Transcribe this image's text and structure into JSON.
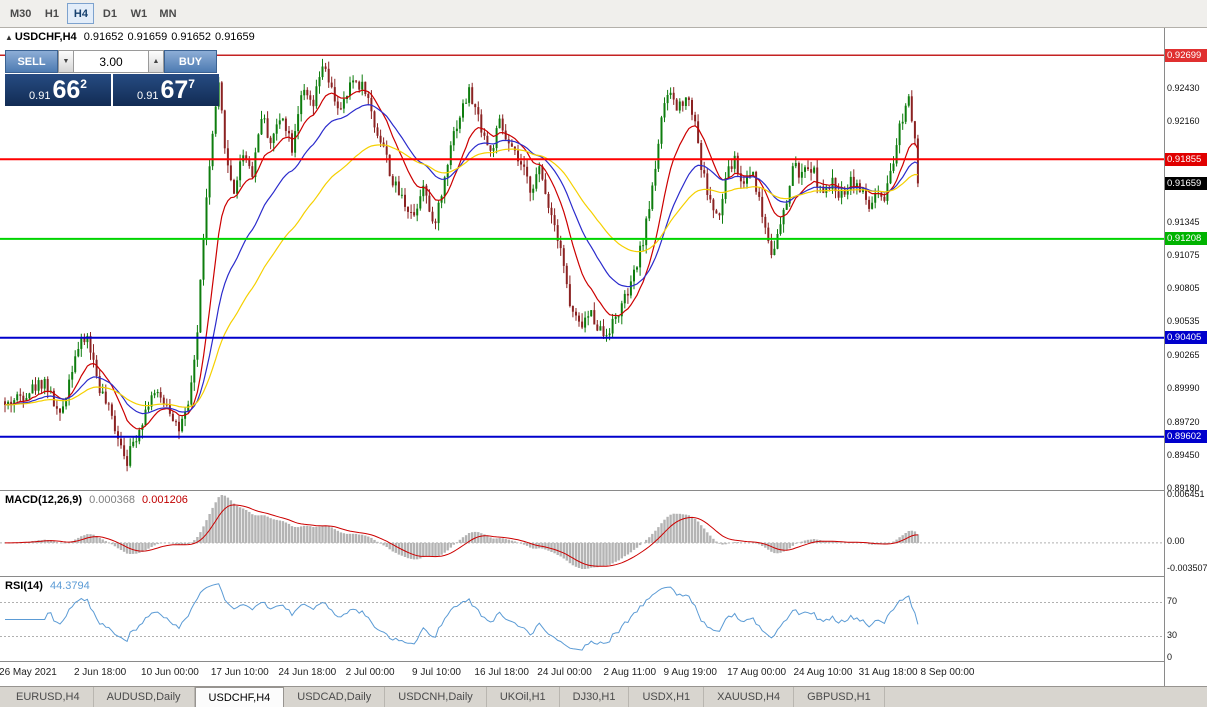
{
  "toolbar": {
    "timeframes": [
      {
        "label": "M30",
        "active": false
      },
      {
        "label": "H1",
        "active": false
      },
      {
        "label": "H4",
        "active": true
      },
      {
        "label": "D1",
        "active": false
      },
      {
        "label": "W1",
        "active": false
      },
      {
        "label": "MN",
        "active": false
      }
    ]
  },
  "chart_header": {
    "collapse_icon": "▲",
    "symbol_period": "USDCHF,H4",
    "open": "0.91652",
    "high": "0.91659",
    "low": "0.91652",
    "close": "0.91659"
  },
  "trade_panel": {
    "sell_label": "SELL",
    "buy_label": "BUY",
    "volume": "3.00",
    "volume_down_icon": "▼",
    "volume_up_icon": "▲",
    "sell_price": {
      "prefix": "0.91",
      "big": "66",
      "sup": "2"
    },
    "buy_price": {
      "prefix": "0.91",
      "big": "67",
      "sup": "7"
    }
  },
  "chart_data": {
    "type": "candlestick",
    "symbol": "USDCHF",
    "timeframe": "H4",
    "bars": 300,
    "price_top": 0.9292,
    "price_bottom": 0.8917,
    "last_close": 0.91659,
    "candle_up_color": "#0e7d0e",
    "candle_down_color": "#8b2222",
    "y_ticks": [
      "0.92430",
      "0.92160",
      "0.91345",
      "0.91075",
      "0.90805",
      "0.90535",
      "0.90265",
      "0.89990",
      "0.89720",
      "0.89450",
      "0.89180"
    ],
    "hlines": [
      {
        "price": 0.92699,
        "color": "#c42222",
        "width": 1.5,
        "label": "0.92699",
        "badge_bg": "#e03030"
      },
      {
        "price": 0.91855,
        "color": "#ff0000",
        "width": 2,
        "label": "0.91855",
        "badge_bg": "#e00000"
      },
      {
        "price": 0.91208,
        "color": "#00d400",
        "width": 2,
        "label": "0.91208",
        "badge_bg": "#00b300"
      },
      {
        "price": 0.90405,
        "color": "#0000cc",
        "width": 2,
        "label": "0.90405",
        "badge_bg": "#0000cc"
      },
      {
        "price": 0.89602,
        "color": "#0000cc",
        "width": 2,
        "label": "0.89602",
        "badge_bg": "#0000cc"
      }
    ],
    "price_badge": {
      "value": "0.91659",
      "bg": "#000000"
    },
    "mas": [
      {
        "period": 13,
        "color": "#cc0000"
      },
      {
        "period": 28,
        "color": "#2b2bcc"
      },
      {
        "period": 55,
        "color": "#f5d000"
      }
    ],
    "path_keypoints": [
      [
        0,
        0.8985
      ],
      [
        4,
        0.8992
      ],
      [
        8,
        0.8998
      ],
      [
        13,
        0.9006
      ],
      [
        18,
        0.8975
      ],
      [
        23,
        0.9028
      ],
      [
        27,
        0.9041
      ],
      [
        31,
        0.9
      ],
      [
        35,
        0.8975
      ],
      [
        40,
        0.8942
      ],
      [
        44,
        0.8968
      ],
      [
        48,
        0.8995
      ],
      [
        53,
        0.8988
      ],
      [
        57,
        0.8966
      ],
      [
        60,
        0.8982
      ],
      [
        63,
        0.9045
      ],
      [
        65,
        0.9125
      ],
      [
        68,
        0.9205
      ],
      [
        70,
        0.9243
      ],
      [
        73,
        0.9178
      ],
      [
        75,
        0.916
      ],
      [
        78,
        0.9192
      ],
      [
        81,
        0.9175
      ],
      [
        84,
        0.9222
      ],
      [
        87,
        0.92
      ],
      [
        91,
        0.9222
      ],
      [
        94,
        0.9196
      ],
      [
        97,
        0.924
      ],
      [
        101,
        0.9228
      ],
      [
        104,
        0.9262
      ],
      [
        107,
        0.924
      ],
      [
        110,
        0.9224
      ],
      [
        114,
        0.925
      ],
      [
        118,
        0.9243
      ],
      [
        121,
        0.9213
      ],
      [
        124,
        0.9196
      ],
      [
        127,
        0.9166
      ],
      [
        131,
        0.915
      ],
      [
        134,
        0.914
      ],
      [
        137,
        0.9168
      ],
      [
        140,
        0.913
      ],
      [
        143,
        0.9156
      ],
      [
        146,
        0.92
      ],
      [
        150,
        0.9228
      ],
      [
        152,
        0.924
      ],
      [
        156,
        0.9212
      ],
      [
        159,
        0.919
      ],
      [
        162,
        0.9214
      ],
      [
        165,
        0.9196
      ],
      [
        169,
        0.918
      ],
      [
        172,
        0.9162
      ],
      [
        175,
        0.9176
      ],
      [
        178,
        0.915
      ],
      [
        182,
        0.9116
      ],
      [
        185,
        0.9066
      ],
      [
        188,
        0.905
      ],
      [
        192,
        0.906
      ],
      [
        196,
        0.9043
      ],
      [
        199,
        0.9052
      ],
      [
        202,
        0.9066
      ],
      [
        205,
        0.9082
      ],
      [
        208,
        0.911
      ],
      [
        210,
        0.9132
      ],
      [
        213,
        0.918
      ],
      [
        215,
        0.922
      ],
      [
        218,
        0.924
      ],
      [
        220,
        0.9226
      ],
      [
        223,
        0.9238
      ],
      [
        226,
        0.9218
      ],
      [
        228,
        0.918
      ],
      [
        231,
        0.915
      ],
      [
        234,
        0.9136
      ],
      [
        236,
        0.917
      ],
      [
        239,
        0.9186
      ],
      [
        241,
        0.9166
      ],
      [
        245,
        0.9176
      ],
      [
        248,
        0.914
      ],
      [
        251,
        0.9112
      ],
      [
        253,
        0.9122
      ],
      [
        256,
        0.915
      ],
      [
        258,
        0.918
      ],
      [
        261,
        0.9172
      ],
      [
        264,
        0.918
      ],
      [
        268,
        0.9156
      ],
      [
        271,
        0.9166
      ],
      [
        274,
        0.9156
      ],
      [
        277,
        0.917
      ],
      [
        280,
        0.9162
      ],
      [
        283,
        0.9146
      ],
      [
        285,
        0.9156
      ],
      [
        288,
        0.915
      ],
      [
        291,
        0.9182
      ],
      [
        293,
        0.9212
      ],
      [
        296,
        0.9238
      ],
      [
        298,
        0.9205
      ],
      [
        299,
        0.9166
      ]
    ],
    "x_labels": [
      {
        "text": "26 May 2021",
        "x": 0.024
      },
      {
        "text": "2 Jun 18:00",
        "x": 0.086
      },
      {
        "text": "10 Jun 00:00",
        "x": 0.146
      },
      {
        "text": "17 Jun 10:00",
        "x": 0.206
      },
      {
        "text": "24 Jun 18:00",
        "x": 0.264
      },
      {
        "text": "2 Jul 00:00",
        "x": 0.318
      },
      {
        "text": "9 Jul 10:00",
        "x": 0.375
      },
      {
        "text": "16 Jul 18:00",
        "x": 0.431
      },
      {
        "text": "24 Jul 00:00",
        "x": 0.485
      },
      {
        "text": "2 Aug 11:00",
        "x": 0.541
      },
      {
        "text": "9 Aug 19:00",
        "x": 0.593
      },
      {
        "text": "17 Aug 00:00",
        "x": 0.65
      },
      {
        "text": "24 Aug 10:00",
        "x": 0.707
      },
      {
        "text": "31 Aug 18:00",
        "x": 0.763
      },
      {
        "text": "8 Sep 00:00",
        "x": 0.814
      }
    ],
    "macd": {
      "title": "MACD(12,26,9)",
      "value1": "0.000368",
      "value2": "0.001206",
      "fast": 12,
      "slow": 26,
      "signal": 9,
      "max": 0.006451,
      "min": -0.003507,
      "max_label": "0.006451",
      "zero_label": "0.00",
      "min_label": "-0.003507",
      "hist_color": "#b4b4b4",
      "signal_color": "#cc0000"
    },
    "rsi": {
      "title": "RSI(14)",
      "value": "44.3794",
      "period": 14,
      "levels": [
        70,
        30
      ],
      "level_labels": [
        "70",
        "30",
        "0"
      ],
      "color": "#5b9bd5",
      "range": [
        0,
        100
      ]
    }
  },
  "bottom_tabs": [
    {
      "label": "EURUSD,H4",
      "active": false
    },
    {
      "label": "AUDUSD,Daily",
      "active": false
    },
    {
      "label": "USDCHF,H4",
      "active": true
    },
    {
      "label": "USDCAD,Daily",
      "active": false
    },
    {
      "label": "USDCNH,Daily",
      "active": false
    },
    {
      "label": "UKOil,H1",
      "active": false
    },
    {
      "label": "DJ30,H1",
      "active": false
    },
    {
      "label": "USDX,H1",
      "active": false
    },
    {
      "label": "XAUUSD,H4",
      "active": false
    },
    {
      "label": "GBPUSD,H1",
      "active": false
    }
  ]
}
